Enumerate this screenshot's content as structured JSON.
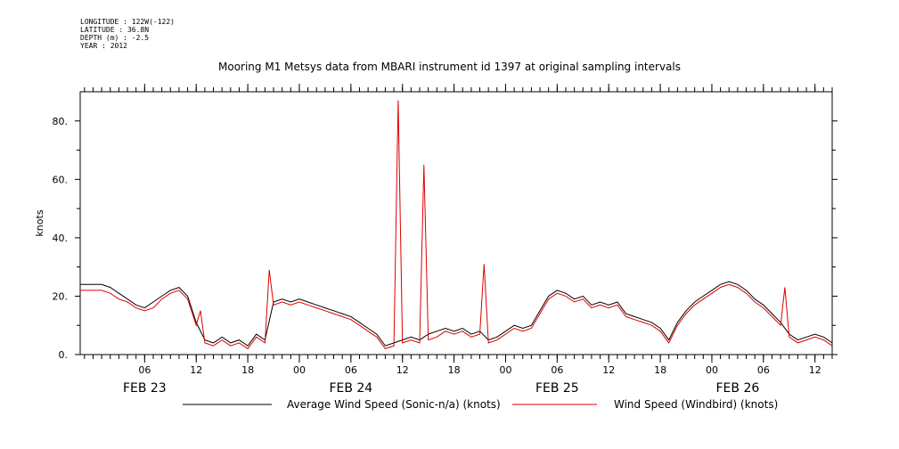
{
  "meta": {
    "longitude": "LONGITUDE : 122W(-122)",
    "latitude": "LATITUDE : 36.8N",
    "depth": "DEPTH (m) : -2.5",
    "year": "YEAR : 2012"
  },
  "chart_data": {
    "type": "line",
    "title": "Mooring M1 Metsys data from MBARI instrument id 1397 at original sampling intervals",
    "ylabel": "knots",
    "xlabel": "",
    "ylim": [
      0,
      90
    ],
    "yticks": [
      0,
      20,
      40,
      60,
      80
    ],
    "ytick_labels": [
      "0.",
      "20.",
      "40.",
      "60.",
      "80."
    ],
    "x_unit": "hours since FEB 23 00:00",
    "xlim": [
      -1.5,
      86
    ],
    "xticks": [
      6,
      12,
      18,
      24,
      30,
      36,
      42,
      48,
      54,
      60,
      66,
      72,
      78,
      84
    ],
    "xtick_labels": [
      "06",
      "12",
      "18",
      "00",
      "06",
      "12",
      "18",
      "00",
      "06",
      "12",
      "18",
      "00",
      "06",
      "12"
    ],
    "day_labels": [
      {
        "label": "FEB 23",
        "hour": 6
      },
      {
        "label": "FEB 24",
        "hour": 30
      },
      {
        "label": "FEB 25",
        "hour": 54
      },
      {
        "label": "FEB 26",
        "hour": 75
      }
    ],
    "grid": false,
    "legend_position": "bottom",
    "series": [
      {
        "name": "Average Wind Speed (Sonic-n/a) (knots)",
        "color": "#000000",
        "x": [
          -1.5,
          0,
          1,
          2,
          3,
          4,
          5,
          6,
          7,
          8,
          9,
          10,
          11,
          12,
          13,
          14,
          15,
          16,
          17,
          18,
          19,
          20,
          21,
          22,
          23,
          24,
          25,
          26,
          27,
          28,
          29,
          30,
          31,
          32,
          33,
          34,
          35,
          36,
          37,
          38,
          39,
          40,
          41,
          42,
          43,
          44,
          45,
          46,
          47,
          48,
          49,
          50,
          51,
          52,
          53,
          54,
          55,
          56,
          57,
          58,
          59,
          60,
          61,
          62,
          63,
          64,
          65,
          66,
          67,
          68,
          69,
          70,
          71,
          72,
          73,
          74,
          75,
          76,
          77,
          78,
          79,
          80,
          81,
          82,
          83,
          84,
          85,
          86
        ],
        "y": [
          24,
          24,
          24,
          23,
          21,
          19,
          17,
          16,
          18,
          20,
          22,
          23,
          20,
          11,
          5,
          4,
          6,
          4,
          5,
          3,
          7,
          5,
          18,
          19,
          18,
          19,
          18,
          17,
          16,
          15,
          14,
          13,
          11,
          9,
          7,
          3,
          4,
          5,
          6,
          5,
          7,
          8,
          9,
          8,
          9,
          7,
          8,
          5,
          6,
          8,
          10,
          9,
          10,
          15,
          20,
          22,
          21,
          19,
          20,
          17,
          18,
          17,
          18,
          14,
          13,
          12,
          11,
          9,
          5,
          11,
          15,
          18,
          20,
          22,
          24,
          25,
          24,
          22,
          19,
          17,
          14,
          11,
          7,
          5,
          6,
          7,
          6,
          4
        ]
      },
      {
        "name": "Wind Speed (Windbird) (knots)",
        "color": "#dd0000",
        "x": [
          -1.5,
          0,
          1,
          2,
          3,
          4,
          5,
          6,
          7,
          8,
          9,
          10,
          11,
          12,
          12.5,
          13,
          14,
          15,
          16,
          17,
          18,
          19,
          20,
          20.5,
          21,
          22,
          23,
          24,
          25,
          26,
          27,
          28,
          29,
          30,
          31,
          32,
          33,
          34,
          35,
          35.5,
          36,
          37,
          38,
          38.5,
          39,
          40,
          41,
          42,
          43,
          44,
          45,
          45.5,
          46,
          47,
          48,
          49,
          50,
          51,
          52,
          53,
          54,
          55,
          56,
          57,
          58,
          59,
          60,
          61,
          62,
          63,
          64,
          65,
          66,
          67,
          68,
          69,
          70,
          71,
          72,
          73,
          74,
          75,
          76,
          77,
          78,
          79,
          80,
          80.5,
          81,
          82,
          83,
          84,
          85,
          86
        ],
        "y": [
          22,
          22,
          22,
          21,
          19,
          18,
          16,
          15,
          16,
          19,
          21,
          22,
          19,
          10,
          15,
          4,
          3,
          5,
          3,
          4,
          2,
          6,
          4,
          29,
          17,
          18,
          17,
          18,
          17,
          16,
          15,
          14,
          13,
          12,
          10,
          8,
          6,
          2,
          3,
          87,
          4,
          5,
          4,
          65,
          5,
          6,
          8,
          7,
          8,
          6,
          7,
          31,
          4,
          5,
          7,
          9,
          8,
          9,
          14,
          19,
          21,
          20,
          18,
          19,
          16,
          17,
          16,
          17,
          13,
          12,
          11,
          10,
          8,
          4,
          10,
          14,
          17,
          19,
          21,
          23,
          24,
          23,
          21,
          18,
          16,
          13,
          10,
          23,
          6,
          4,
          5,
          6,
          5,
          3
        ]
      }
    ]
  },
  "legend": {
    "items": [
      {
        "label": "Average Wind Speed (Sonic-n/a) (knots)",
        "color": "#000000"
      },
      {
        "label": "Wind Speed (Windbird) (knots)",
        "color": "#dd0000"
      }
    ]
  }
}
